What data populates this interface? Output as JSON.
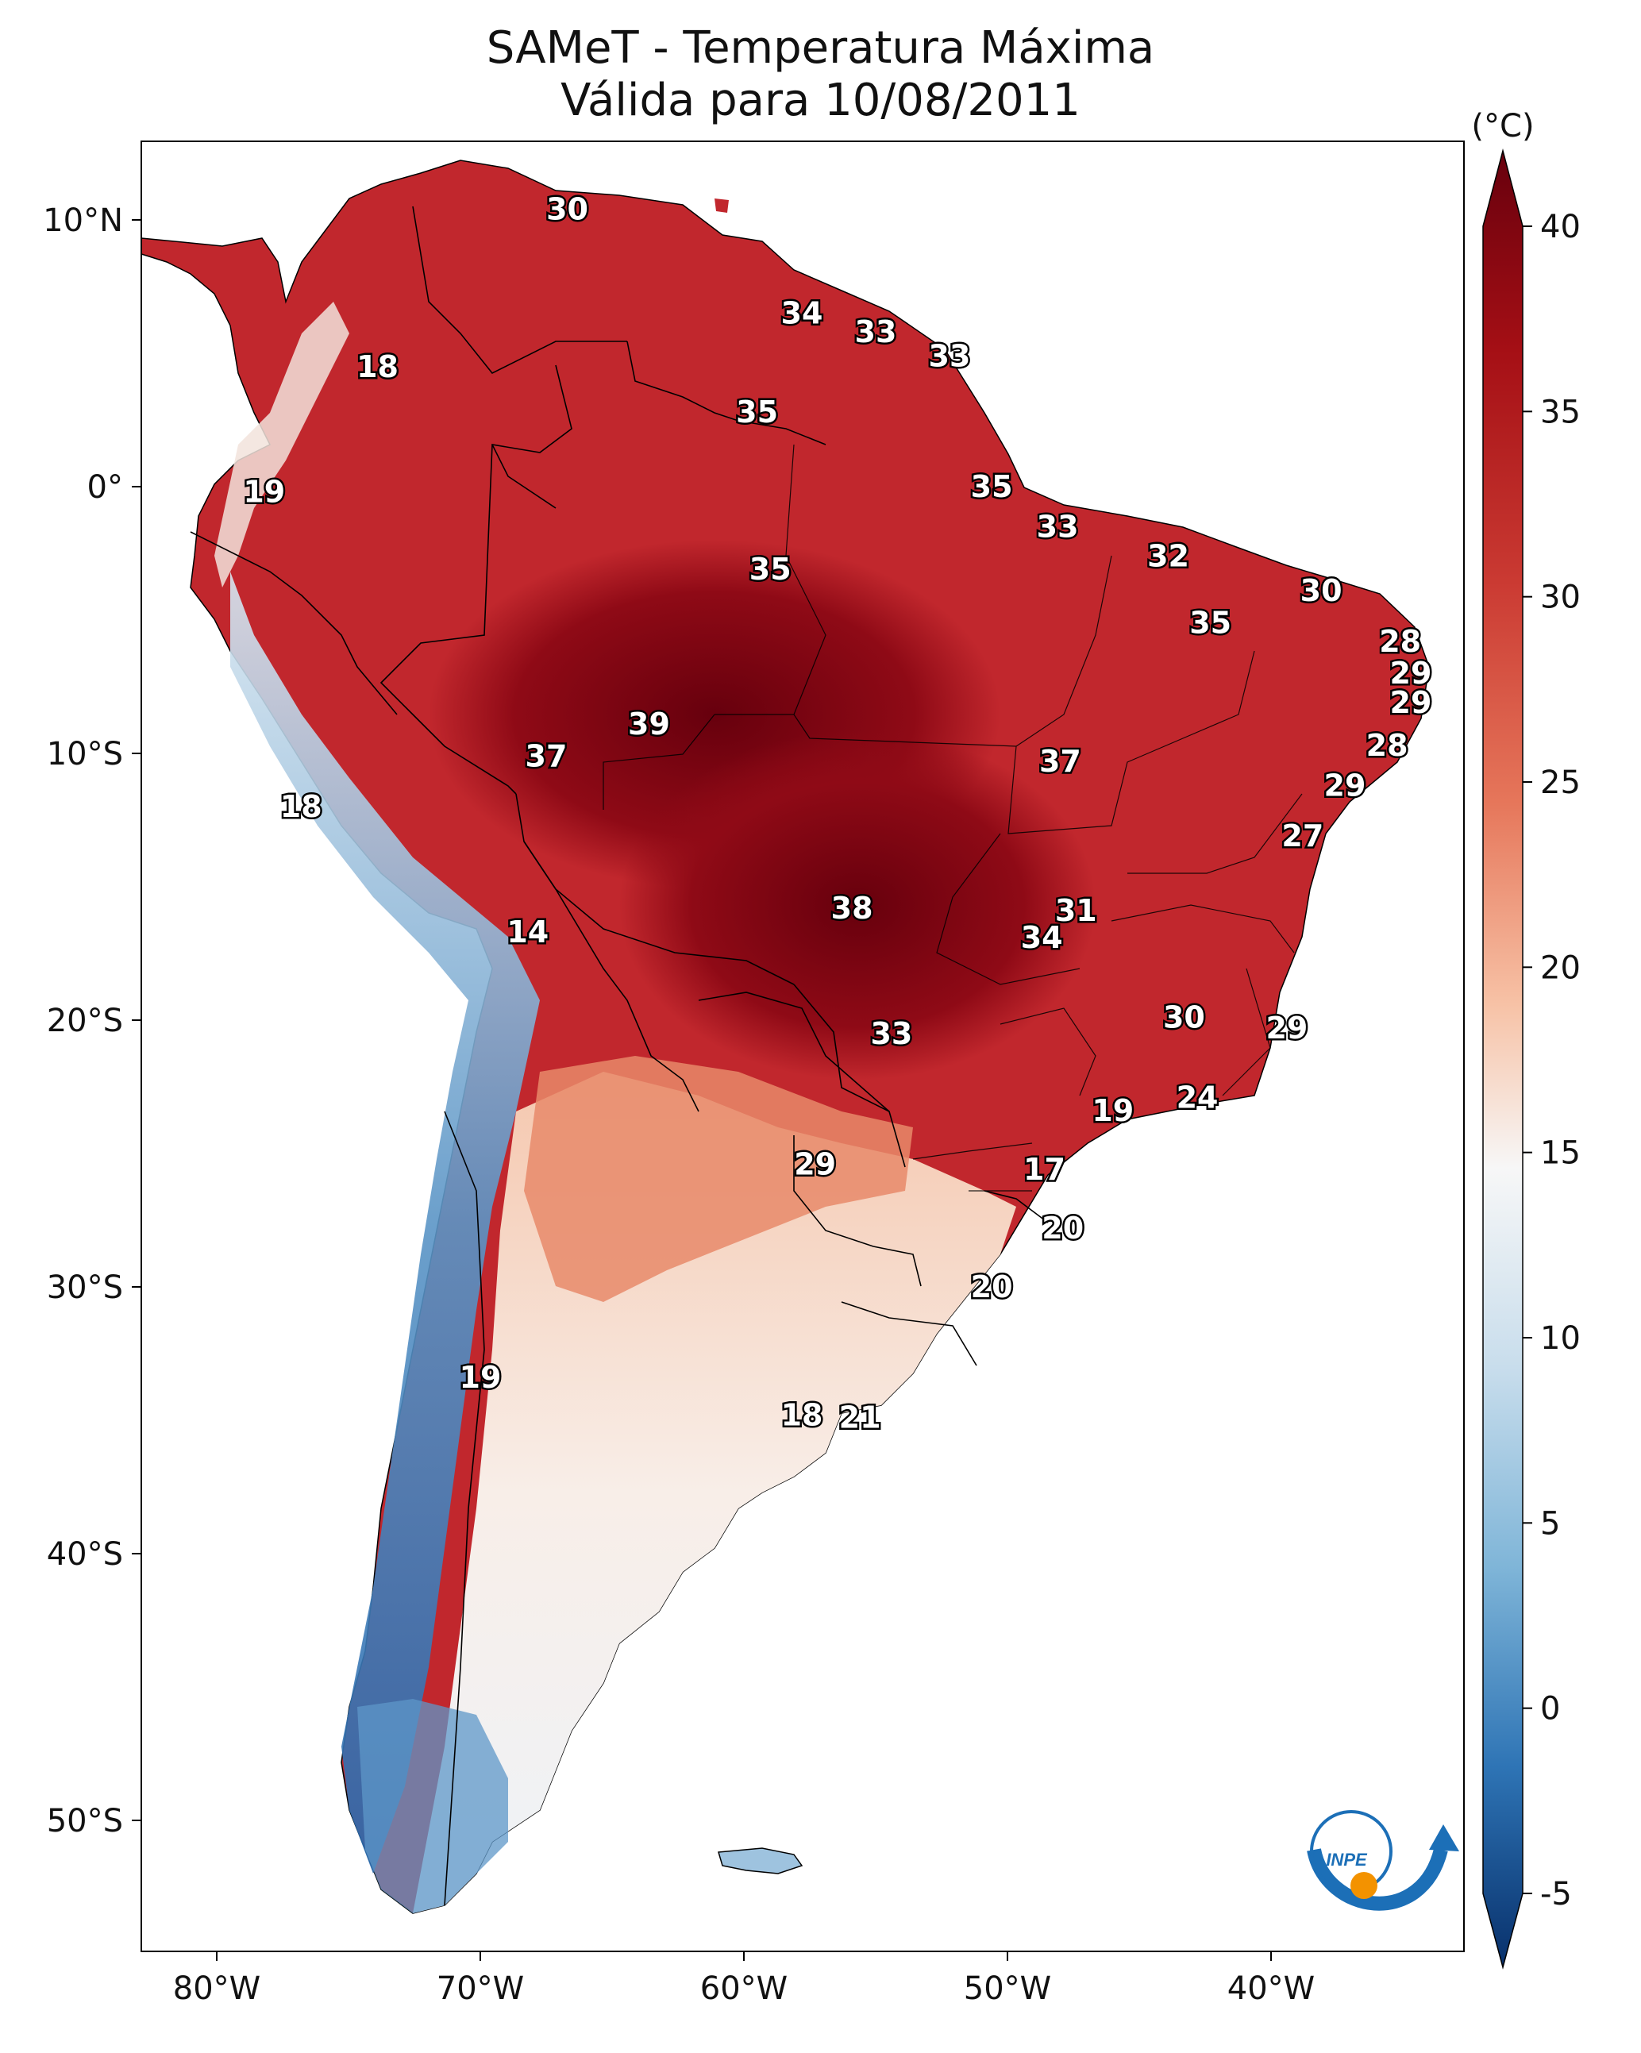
{
  "title": {
    "line1": "SAMeT - Temperatura Máxima",
    "line2": "Válida para 10/08/2011"
  },
  "axes": {
    "lon_ticks": [
      "80°W",
      "70°W",
      "60°W",
      "50°W",
      "40°W"
    ],
    "lat_ticks": [
      "10°N",
      "0°",
      "10°S",
      "20°S",
      "30°S",
      "40°S",
      "50°S"
    ]
  },
  "colorbar": {
    "unit": "(°C)",
    "ticks": [
      "40",
      "35",
      "30",
      "25",
      "20",
      "15",
      "10",
      "5",
      "0",
      "-5"
    ],
    "range": [
      -5,
      40
    ],
    "colors": {
      "min": "#08306b",
      "mid": "#f7f7f7",
      "max": "#67000d"
    }
  },
  "map_labels": [
    {
      "text": "30",
      "lon": -66.7,
      "lat": 10.4
    },
    {
      "text": "34",
      "lon": -57.8,
      "lat": 6.5
    },
    {
      "text": "33",
      "lon": -55.0,
      "lat": 5.8
    },
    {
      "text": "33",
      "lon": -52.2,
      "lat": 4.9
    },
    {
      "text": "18",
      "lon": -73.9,
      "lat": 4.5
    },
    {
      "text": "35",
      "lon": -59.5,
      "lat": 2.8
    },
    {
      "text": "35",
      "lon": -50.6,
      "lat": 0.0
    },
    {
      "text": "19",
      "lon": -78.2,
      "lat": -0.2
    },
    {
      "text": "33",
      "lon": -48.1,
      "lat": -1.5
    },
    {
      "text": "32",
      "lon": -43.9,
      "lat": -2.6
    },
    {
      "text": "35",
      "lon": -59.0,
      "lat": -3.1
    },
    {
      "text": "30",
      "lon": -38.1,
      "lat": -3.9
    },
    {
      "text": "35",
      "lon": -42.3,
      "lat": -5.1
    },
    {
      "text": "28",
      "lon": -35.1,
      "lat": -5.8
    },
    {
      "text": "29",
      "lon": -34.7,
      "lat": -7.0
    },
    {
      "text": "29",
      "lon": -34.7,
      "lat": -8.1
    },
    {
      "text": "39",
      "lon": -63.6,
      "lat": -8.9
    },
    {
      "text": "37",
      "lon": -67.5,
      "lat": -10.1
    },
    {
      "text": "37",
      "lon": -48.0,
      "lat": -10.3
    },
    {
      "text": "28",
      "lon": -35.6,
      "lat": -9.7
    },
    {
      "text": "29",
      "lon": -37.2,
      "lat": -11.2
    },
    {
      "text": "18",
      "lon": -76.8,
      "lat": -12.0
    },
    {
      "text": "27",
      "lon": -38.8,
      "lat": -13.1
    },
    {
      "text": "31",
      "lon": -47.4,
      "lat": -15.9
    },
    {
      "text": "38",
      "lon": -55.9,
      "lat": -15.8
    },
    {
      "text": "34",
      "lon": -48.7,
      "lat": -16.9
    },
    {
      "text": "14",
      "lon": -68.2,
      "lat": -16.7
    },
    {
      "text": "30",
      "lon": -43.3,
      "lat": -19.9
    },
    {
      "text": "29",
      "lon": -39.4,
      "lat": -20.3
    },
    {
      "text": "33",
      "lon": -54.4,
      "lat": -20.5
    },
    {
      "text": "24",
      "lon": -42.8,
      "lat": -22.9
    },
    {
      "text": "19",
      "lon": -46.0,
      "lat": -23.4
    },
    {
      "text": "29",
      "lon": -57.3,
      "lat": -25.4
    },
    {
      "text": "17",
      "lon": -48.6,
      "lat": -25.6
    },
    {
      "text": "20",
      "lon": -47.9,
      "lat": -27.8
    },
    {
      "text": "20",
      "lon": -50.6,
      "lat": -30.0
    },
    {
      "text": "19",
      "lon": -70.0,
      "lat": -33.4
    },
    {
      "text": "18",
      "lon": -57.8,
      "lat": -34.8
    },
    {
      "text": "21",
      "lon": -55.6,
      "lat": -34.9
    }
  ],
  "logo": {
    "text": "INPE",
    "colors": {
      "blue": "#1c6fb7",
      "orange": "#f39200"
    }
  }
}
